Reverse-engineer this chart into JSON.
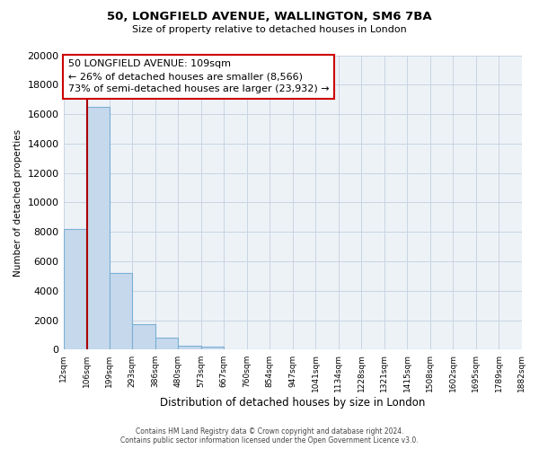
{
  "title": "50, LONGFIELD AVENUE, WALLINGTON, SM6 7BA",
  "subtitle": "Size of property relative to detached houses in London",
  "xlabel": "Distribution of detached houses by size in London",
  "ylabel": "Number of detached properties",
  "bar_color": "#c6d9ec",
  "bar_edge_color": "#7bafd4",
  "property_line_color": "#aa0000",
  "property_value": 109,
  "annotation_title": "50 LONGFIELD AVENUE: 109sqm",
  "annotation_line1": "← 26% of detached houses are smaller (8,566)",
  "annotation_line2": "73% of semi-detached houses are larger (23,932) →",
  "bin_edges": [
    12,
    106,
    199,
    293,
    386,
    480,
    573,
    667,
    760,
    854,
    947,
    1041,
    1134,
    1228,
    1321,
    1415,
    1508,
    1602,
    1695,
    1789,
    1882
  ],
  "bin_labels": [
    "12sqm",
    "106sqm",
    "199sqm",
    "293sqm",
    "386sqm",
    "480sqm",
    "573sqm",
    "667sqm",
    "760sqm",
    "854sqm",
    "947sqm",
    "1041sqm",
    "1134sqm",
    "1228sqm",
    "1321sqm",
    "1415sqm",
    "1508sqm",
    "1602sqm",
    "1695sqm",
    "1789sqm",
    "1882sqm"
  ],
  "bar_heights": [
    8200,
    16500,
    5200,
    1750,
    800,
    270,
    240,
    0,
    0,
    0,
    0,
    0,
    0,
    0,
    0,
    0,
    0,
    0,
    0,
    0
  ],
  "ylim": [
    0,
    20000
  ],
  "yticks": [
    0,
    2000,
    4000,
    6000,
    8000,
    10000,
    12000,
    14000,
    16000,
    18000,
    20000
  ],
  "background_color": "#ffffff",
  "plot_bg_color": "#edf2f7",
  "grid_color": "#c8d5e3",
  "footer_line1": "Contains HM Land Registry data © Crown copyright and database right 2024.",
  "footer_line2": "Contains public sector information licensed under the Open Government Licence v3.0."
}
